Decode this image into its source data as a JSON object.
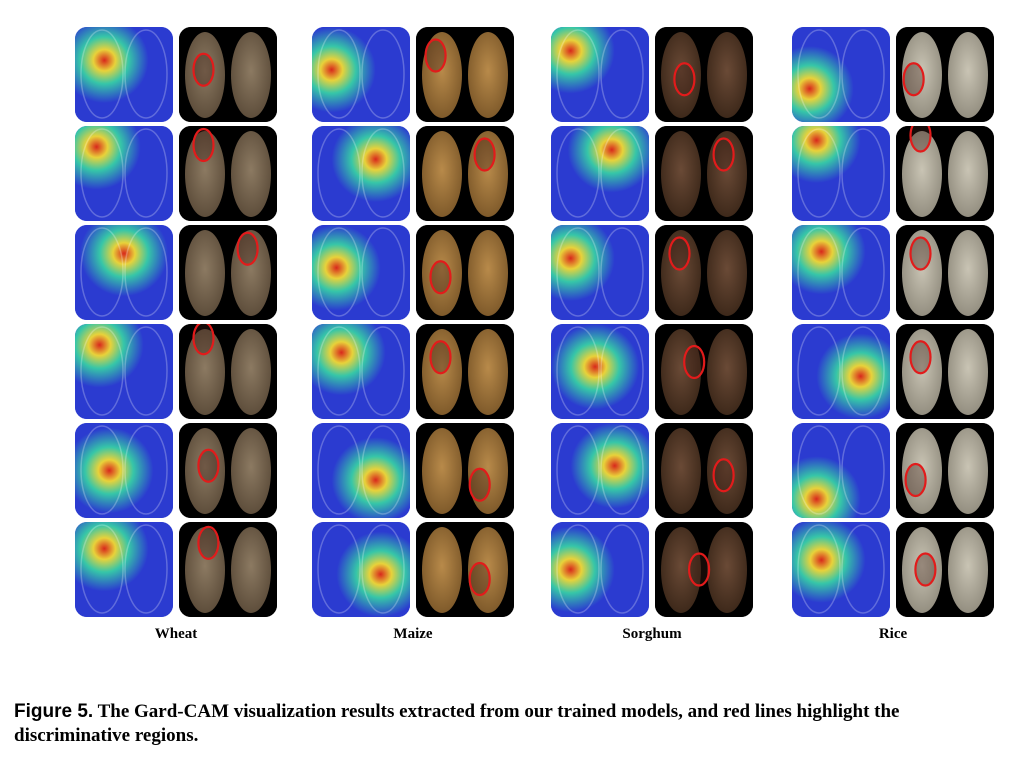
{
  "figure": {
    "columns": [
      {
        "label": "Wheat",
        "photo_tone": "#8c7a62",
        "photo_tone_dark": "#5a4a38"
      },
      {
        "label": "Maize",
        "photo_tone": "#b88a4a",
        "photo_tone_dark": "#7a5628"
      },
      {
        "label": "Sorghum",
        "photo_tone": "#6a4a36",
        "photo_tone_dark": "#3a2618"
      },
      {
        "label": "Rice",
        "photo_tone": "#c9c4b4",
        "photo_tone_dark": "#8f8a7c"
      }
    ],
    "rows": 6,
    "panel_types": [
      "grad-cam-heatmap",
      "red-outlined-grain-photo"
    ],
    "colors": {
      "heatmap_low": "#2b3bd0",
      "heatmap_mid": "#36c6a8",
      "heatmap_high": "#e8d23a",
      "heatmap_peak": "#d8281c",
      "outline": "#e21b1b"
    }
  },
  "caption": {
    "figure_number": "Figure 5.",
    "text": "The Gard-CAM visualization results extracted from our trained models, and red lines highlight the discriminative regions."
  }
}
